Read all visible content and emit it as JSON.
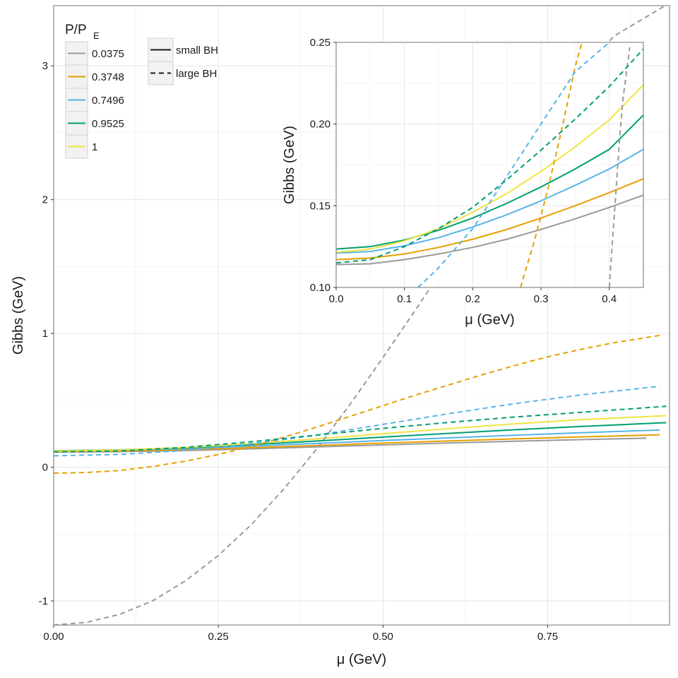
{
  "chart_data": [
    {
      "id": "main",
      "type": "line",
      "xlabel": "μ (GeV)",
      "ylabel": "Gibbs (GeV)",
      "xlim": [
        0,
        0.935
      ],
      "ylim": [
        -1.18,
        3.45
      ],
      "x_ticks": [
        0,
        0.25,
        0.5,
        0.75
      ],
      "x_tick_labels": [
        "0.00",
        "0.25",
        "0.50",
        "0.75"
      ],
      "y_ticks": [
        -1,
        0,
        1,
        2,
        3
      ],
      "y_tick_labels": [
        "-1",
        "0",
        "1",
        "2",
        "3"
      ],
      "grid": true,
      "legend_title": "P/P",
      "legend_title_sub": "E",
      "legend_position": "top-left",
      "series": [
        {
          "name": "0.0375",
          "color": "#999999",
          "branch": "small BH",
          "points": [
            [
              0,
              0.113
            ],
            [
              0.1,
              0.116
            ],
            [
              0.2,
              0.124
            ],
            [
              0.3,
              0.137
            ],
            [
              0.4,
              0.152
            ],
            [
              0.5,
              0.166
            ],
            [
              0.6,
              0.181
            ],
            [
              0.7,
              0.194
            ],
            [
              0.8,
              0.206
            ],
            [
              0.9,
              0.217
            ]
          ]
        },
        {
          "name": "0.3748",
          "color": "#E69F00",
          "branch": "small BH",
          "points": [
            [
              0,
              0.117
            ],
            [
              0.1,
              0.121
            ],
            [
              0.2,
              0.131
            ],
            [
              0.3,
              0.146
            ],
            [
              0.4,
              0.162
            ],
            [
              0.5,
              0.18
            ],
            [
              0.6,
              0.196
            ],
            [
              0.7,
              0.212
            ],
            [
              0.8,
              0.226
            ],
            [
              0.92,
              0.242
            ]
          ]
        },
        {
          "name": "0.7496",
          "color": "#56B4E9",
          "branch": "small BH",
          "points": [
            [
              0,
              0.121
            ],
            [
              0.1,
              0.127
            ],
            [
              0.2,
              0.139
            ],
            [
              0.3,
              0.157
            ],
            [
              0.4,
              0.178
            ],
            [
              0.5,
              0.199
            ],
            [
              0.6,
              0.219
            ],
            [
              0.7,
              0.239
            ],
            [
              0.8,
              0.257
            ],
            [
              0.92,
              0.278
            ]
          ]
        },
        {
          "name": "0.9525",
          "color": "#009E73",
          "branch": "small BH",
          "points": [
            [
              0,
              0.123
            ],
            [
              0.1,
              0.129
            ],
            [
              0.2,
              0.145
            ],
            [
              0.3,
              0.168
            ],
            [
              0.4,
              0.196
            ],
            [
              0.5,
              0.225
            ],
            [
              0.6,
              0.253
            ],
            [
              0.7,
              0.28
            ],
            [
              0.8,
              0.304
            ],
            [
              0.93,
              0.333
            ]
          ]
        },
        {
          "name": "1",
          "color": "#F0E442",
          "branch": "small BH",
          "points": [
            [
              0,
              0.121
            ],
            [
              0.1,
              0.128
            ],
            [
              0.2,
              0.148
            ],
            [
              0.3,
              0.176
            ],
            [
              0.4,
              0.212
            ],
            [
              0.5,
              0.25
            ],
            [
              0.6,
              0.288
            ],
            [
              0.7,
              0.324
            ],
            [
              0.8,
              0.355
            ],
            [
              0.93,
              0.385
            ]
          ]
        },
        {
          "name": "0.0375",
          "color": "#999999",
          "branch": "large BH",
          "points": [
            [
              0,
              -1.18
            ],
            [
              0.05,
              -1.16
            ],
            [
              0.1,
              -1.1
            ],
            [
              0.15,
              -1.0
            ],
            [
              0.2,
              -0.85
            ],
            [
              0.25,
              -0.66
            ],
            [
              0.3,
              -0.43
            ],
            [
              0.35,
              -0.16
            ],
            [
              0.4,
              0.14
            ],
            [
              0.45,
              0.47
            ],
            [
              0.5,
              0.82
            ],
            [
              0.55,
              1.18
            ],
            [
              0.6,
              1.55
            ],
            [
              0.65,
              1.92
            ],
            [
              0.7,
              2.28
            ],
            [
              0.75,
              2.62
            ],
            [
              0.8,
              2.94
            ],
            [
              0.85,
              3.22
            ],
            [
              0.935,
              3.47
            ]
          ]
        },
        {
          "name": "0.3748",
          "color": "#E69F00",
          "branch": "large BH",
          "points": [
            [
              0,
              -0.045
            ],
            [
              0.05,
              -0.04
            ],
            [
              0.1,
              -0.025
            ],
            [
              0.15,
              0.005
            ],
            [
              0.2,
              0.045
            ],
            [
              0.25,
              0.095
            ],
            [
              0.3,
              0.155
            ],
            [
              0.35,
              0.225
            ],
            [
              0.4,
              0.3
            ],
            [
              0.45,
              0.38
            ],
            [
              0.5,
              0.46
            ],
            [
              0.55,
              0.54
            ],
            [
              0.6,
              0.615
            ],
            [
              0.65,
              0.69
            ],
            [
              0.7,
              0.76
            ],
            [
              0.75,
              0.825
            ],
            [
              0.8,
              0.88
            ],
            [
              0.85,
              0.93
            ],
            [
              0.92,
              0.985
            ]
          ]
        },
        {
          "name": "0.7496",
          "color": "#56B4E9",
          "branch": "large BH",
          "points": [
            [
              0,
              0.085
            ],
            [
              0.1,
              0.095
            ],
            [
              0.2,
              0.125
            ],
            [
              0.3,
              0.175
            ],
            [
              0.4,
              0.24
            ],
            [
              0.5,
              0.32
            ],
            [
              0.6,
              0.4
            ],
            [
              0.7,
              0.475
            ],
            [
              0.8,
              0.54
            ],
            [
              0.92,
              0.605
            ]
          ]
        },
        {
          "name": "0.9525",
          "color": "#009E73",
          "branch": "large BH",
          "points": [
            [
              0,
              0.114
            ],
            [
              0.1,
              0.121
            ],
            [
              0.2,
              0.148
            ],
            [
              0.3,
              0.19
            ],
            [
              0.4,
              0.24
            ],
            [
              0.5,
              0.29
            ],
            [
              0.6,
              0.335
            ],
            [
              0.7,
              0.375
            ],
            [
              0.8,
              0.41
            ],
            [
              0.93,
              0.455
            ]
          ]
        }
      ]
    },
    {
      "id": "inset",
      "type": "line",
      "xlabel": "μ (GeV)",
      "ylabel": "Gibbs (GeV)",
      "xlim": [
        0,
        0.45
      ],
      "ylim": [
        0.1,
        0.25
      ],
      "x_ticks": [
        0,
        0.1,
        0.2,
        0.3,
        0.4
      ],
      "x_tick_labels": [
        "0.0",
        "0.1",
        "0.2",
        "0.3",
        "0.4"
      ],
      "y_ticks": [
        0.1,
        0.15,
        0.2,
        0.25
      ],
      "y_tick_labels": [
        "0.10",
        "0.15",
        "0.20",
        "0.25"
      ],
      "grid": true,
      "series": [
        {
          "name": "0.0375",
          "color": "#999999",
          "branch": "small BH",
          "points": [
            [
              0,
              0.114
            ],
            [
              0.05,
              0.1145
            ],
            [
              0.1,
              0.117
            ],
            [
              0.15,
              0.1205
            ],
            [
              0.2,
              0.1245
            ],
            [
              0.25,
              0.1295
            ],
            [
              0.3,
              0.1355
            ],
            [
              0.35,
              0.142
            ],
            [
              0.4,
              0.149
            ],
            [
              0.45,
              0.1565
            ]
          ]
        },
        {
          "name": "0.3748",
          "color": "#E69F00",
          "branch": "small BH",
          "points": [
            [
              0,
              0.117
            ],
            [
              0.05,
              0.118
            ],
            [
              0.1,
              0.1205
            ],
            [
              0.15,
              0.1245
            ],
            [
              0.2,
              0.1295
            ],
            [
              0.25,
              0.1355
            ],
            [
              0.3,
              0.1425
            ],
            [
              0.35,
              0.15
            ],
            [
              0.4,
              0.158
            ],
            [
              0.45,
              0.1665
            ]
          ]
        },
        {
          "name": "0.7496",
          "color": "#56B4E9",
          "branch": "small BH",
          "points": [
            [
              0,
              0.121
            ],
            [
              0.05,
              0.122
            ],
            [
              0.1,
              0.1255
            ],
            [
              0.15,
              0.1305
            ],
            [
              0.2,
              0.137
            ],
            [
              0.25,
              0.1445
            ],
            [
              0.3,
              0.153
            ],
            [
              0.35,
              0.1625
            ],
            [
              0.4,
              0.1725
            ],
            [
              0.45,
              0.1845
            ]
          ]
        },
        {
          "name": "0.9525",
          "color": "#009E73",
          "branch": "small BH",
          "points": [
            [
              0,
              0.1235
            ],
            [
              0.05,
              0.125
            ],
            [
              0.1,
              0.129
            ],
            [
              0.15,
              0.135
            ],
            [
              0.2,
              0.1425
            ],
            [
              0.25,
              0.1515
            ],
            [
              0.3,
              0.1615
            ],
            [
              0.35,
              0.1725
            ],
            [
              0.4,
              0.1845
            ],
            [
              0.45,
              0.2055
            ]
          ]
        },
        {
          "name": "1",
          "color": "#F0E442",
          "branch": "small BH",
          "points": [
            [
              0,
              0.1215
            ],
            [
              0.05,
              0.1235
            ],
            [
              0.1,
              0.1285
            ],
            [
              0.15,
              0.136
            ],
            [
              0.2,
              0.146
            ],
            [
              0.25,
              0.1575
            ],
            [
              0.3,
              0.171
            ],
            [
              0.35,
              0.186
            ],
            [
              0.4,
              0.2025
            ],
            [
              0.45,
              0.224
            ]
          ]
        },
        {
          "name": "0.0375",
          "color": "#999999",
          "branch": "large BH",
          "points": [
            [
              0.4,
              0.1
            ],
            [
              0.405,
              0.13
            ],
            [
              0.41,
              0.16
            ],
            [
              0.415,
              0.19
            ],
            [
              0.42,
              0.215
            ],
            [
              0.43,
              0.247
            ]
          ]
        },
        {
          "name": "0.3748",
          "color": "#E69F00",
          "branch": "large BH",
          "points": [
            [
              0.27,
              0.1
            ],
            [
              0.29,
              0.128
            ],
            [
              0.31,
              0.16
            ],
            [
              0.33,
              0.196
            ],
            [
              0.35,
              0.235
            ],
            [
              0.36,
              0.25
            ]
          ]
        },
        {
          "name": "0.7496",
          "color": "#56B4E9",
          "branch": "large BH",
          "points": [
            [
              0.12,
              0.1
            ],
            [
              0.15,
              0.112
            ],
            [
              0.2,
              0.136
            ],
            [
              0.25,
              0.168
            ],
            [
              0.3,
              0.2
            ],
            [
              0.35,
              0.232
            ],
            [
              0.4,
              0.25
            ]
          ]
        },
        {
          "name": "0.9525",
          "color": "#009E73",
          "branch": "large BH",
          "points": [
            [
              0,
              0.115
            ],
            [
              0.05,
              0.117
            ],
            [
              0.1,
              0.125
            ],
            [
              0.15,
              0.136
            ],
            [
              0.2,
              0.149
            ],
            [
              0.25,
              0.166
            ],
            [
              0.3,
              0.184
            ],
            [
              0.35,
              0.203
            ],
            [
              0.4,
              0.223
            ],
            [
              0.45,
              0.246
            ]
          ]
        }
      ]
    }
  ],
  "legend": {
    "title": "P/P",
    "title_sub": "E",
    "pressure_entries": [
      {
        "label": "0.0375",
        "color": "#999999"
      },
      {
        "label": "0.3748",
        "color": "#E69F00"
      },
      {
        "label": "0.7496",
        "color": "#56B4E9"
      },
      {
        "label": "0.9525",
        "color": "#009E73"
      },
      {
        "label": "1",
        "color": "#F0E442"
      }
    ],
    "branch_entries": [
      {
        "label": "small BH",
        "style": "solid"
      },
      {
        "label": "large BH",
        "style": "dashed"
      }
    ]
  }
}
